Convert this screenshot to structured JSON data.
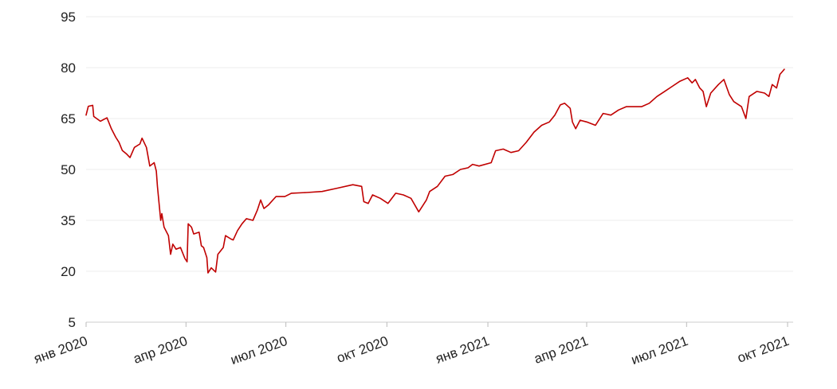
{
  "chart_data": {
    "type": "line",
    "title": "",
    "xlabel": "",
    "ylabel": "",
    "ylim": [
      5,
      95
    ],
    "xlim": [
      "2020-01-01",
      "2021-10-01"
    ],
    "yticks": [
      "95",
      "80",
      "65",
      "50",
      "35",
      "20",
      "5"
    ],
    "xticks": [
      {
        "date": "2020-01-01",
        "label": "янв 2020"
      },
      {
        "date": "2020-04-01",
        "label": "апр 2020"
      },
      {
        "date": "2020-07-01",
        "label": "июл 2020"
      },
      {
        "date": "2020-10-01",
        "label": "окт 2020"
      },
      {
        "date": "2021-01-01",
        "label": "янв 2021"
      },
      {
        "date": "2021-04-01",
        "label": "апр 2021"
      },
      {
        "date": "2021-07-01",
        "label": "июл 2021"
      },
      {
        "date": "2021-10-01",
        "label": "окт 2021"
      }
    ],
    "grid": true,
    "series": [
      {
        "color": "#c00000",
        "points": [
          [
            "2020-01-01",
            66.0
          ],
          [
            "2020-01-03",
            68.6
          ],
          [
            "2020-01-07",
            68.9
          ],
          [
            "2020-01-08",
            65.6
          ],
          [
            "2020-01-14",
            64.2
          ],
          [
            "2020-01-20",
            65.2
          ],
          [
            "2020-01-24",
            62.0
          ],
          [
            "2020-01-28",
            59.5
          ],
          [
            "2020-01-31",
            58.0
          ],
          [
            "2020-02-03",
            55.6
          ],
          [
            "2020-02-07",
            54.5
          ],
          [
            "2020-02-10",
            53.5
          ],
          [
            "2020-02-14",
            56.5
          ],
          [
            "2020-02-19",
            57.5
          ],
          [
            "2020-02-21",
            59.2
          ],
          [
            "2020-02-25",
            56.5
          ],
          [
            "2020-02-28",
            51.0
          ],
          [
            "2020-03-03",
            52.0
          ],
          [
            "2020-03-05",
            49.5
          ],
          [
            "2020-03-06",
            45.0
          ],
          [
            "2020-03-09",
            35.0
          ],
          [
            "2020-03-10",
            37.0
          ],
          [
            "2020-03-12",
            33.0
          ],
          [
            "2020-03-16",
            30.5
          ],
          [
            "2020-03-18",
            25.0
          ],
          [
            "2020-03-20",
            28.0
          ],
          [
            "2020-03-23",
            26.5
          ],
          [
            "2020-03-27",
            27.0
          ],
          [
            "2020-03-31",
            23.8
          ],
          [
            "2020-04-02",
            22.8
          ],
          [
            "2020-04-03",
            34.0
          ],
          [
            "2020-04-06",
            33.0
          ],
          [
            "2020-04-08",
            31.0
          ],
          [
            "2020-04-13",
            31.5
          ],
          [
            "2020-04-15",
            27.5
          ],
          [
            "2020-04-17",
            27.0
          ],
          [
            "2020-04-20",
            24.0
          ],
          [
            "2020-04-21",
            19.5
          ],
          [
            "2020-04-24",
            21.0
          ],
          [
            "2020-04-28",
            19.8
          ],
          [
            "2020-04-30",
            25.0
          ],
          [
            "2020-05-05",
            27.0
          ],
          [
            "2020-05-07",
            30.5
          ],
          [
            "2020-05-12",
            29.5
          ],
          [
            "2020-05-14",
            29.2
          ],
          [
            "2020-05-18",
            32.0
          ],
          [
            "2020-05-22",
            34.0
          ],
          [
            "2020-05-26",
            35.5
          ],
          [
            "2020-06-01",
            35.0
          ],
          [
            "2020-06-05",
            38.0
          ],
          [
            "2020-06-08",
            41.0
          ],
          [
            "2020-06-11",
            38.5
          ],
          [
            "2020-06-15",
            39.5
          ],
          [
            "2020-06-22",
            42.0
          ],
          [
            "2020-06-30",
            42.0
          ],
          [
            "2020-07-06",
            43.0
          ],
          [
            "2020-07-20",
            43.2
          ],
          [
            "2020-08-03",
            43.5
          ],
          [
            "2020-08-17",
            44.5
          ],
          [
            "2020-08-31",
            45.5
          ],
          [
            "2020-09-08",
            45.0
          ],
          [
            "2020-09-10",
            40.5
          ],
          [
            "2020-09-14",
            40.0
          ],
          [
            "2020-09-18",
            42.5
          ],
          [
            "2020-09-25",
            41.5
          ],
          [
            "2020-10-02",
            40.0
          ],
          [
            "2020-10-09",
            43.0
          ],
          [
            "2020-10-16",
            42.5
          ],
          [
            "2020-10-23",
            41.5
          ],
          [
            "2020-10-30",
            37.5
          ],
          [
            "2020-11-03",
            39.5
          ],
          [
            "2020-11-06",
            41.0
          ],
          [
            "2020-11-09",
            43.5
          ],
          [
            "2020-11-16",
            45.0
          ],
          [
            "2020-11-23",
            48.0
          ],
          [
            "2020-11-30",
            48.5
          ],
          [
            "2020-12-07",
            50.0
          ],
          [
            "2020-12-14",
            50.5
          ],
          [
            "2020-12-18",
            51.5
          ],
          [
            "2020-12-24",
            51.0
          ],
          [
            "2021-01-04",
            52.0
          ],
          [
            "2021-01-08",
            55.5
          ],
          [
            "2021-01-15",
            56.0
          ],
          [
            "2021-01-22",
            55.0
          ],
          [
            "2021-01-29",
            55.5
          ],
          [
            "2021-02-05",
            58.0
          ],
          [
            "2021-02-12",
            61.0
          ],
          [
            "2021-02-19",
            63.0
          ],
          [
            "2021-02-26",
            64.0
          ],
          [
            "2021-03-03",
            66.0
          ],
          [
            "2021-03-08",
            69.0
          ],
          [
            "2021-03-12",
            69.5
          ],
          [
            "2021-03-17",
            68.0
          ],
          [
            "2021-03-19",
            64.0
          ],
          [
            "2021-03-22",
            62.0
          ],
          [
            "2021-03-26",
            64.5
          ],
          [
            "2021-04-01",
            64.0
          ],
          [
            "2021-04-09",
            63.0
          ],
          [
            "2021-04-16",
            66.5
          ],
          [
            "2021-04-23",
            66.0
          ],
          [
            "2021-04-30",
            67.5
          ],
          [
            "2021-05-07",
            68.5
          ],
          [
            "2021-05-14",
            68.5
          ],
          [
            "2021-05-21",
            68.5
          ],
          [
            "2021-05-28",
            69.5
          ],
          [
            "2021-06-04",
            71.5
          ],
          [
            "2021-06-11",
            73.0
          ],
          [
            "2021-06-18",
            74.5
          ],
          [
            "2021-06-25",
            76.0
          ],
          [
            "2021-07-02",
            77.0
          ],
          [
            "2021-07-06",
            75.5
          ],
          [
            "2021-07-09",
            76.5
          ],
          [
            "2021-07-13",
            74.0
          ],
          [
            "2021-07-16",
            73.0
          ],
          [
            "2021-07-19",
            68.5
          ],
          [
            "2021-07-23",
            72.5
          ],
          [
            "2021-07-30",
            75.0
          ],
          [
            "2021-08-04",
            76.5
          ],
          [
            "2021-08-09",
            72.0
          ],
          [
            "2021-08-13",
            70.0
          ],
          [
            "2021-08-20",
            68.5
          ],
          [
            "2021-08-24",
            65.0
          ],
          [
            "2021-08-27",
            71.5
          ],
          [
            "2021-09-03",
            73.0
          ],
          [
            "2021-09-10",
            72.5
          ],
          [
            "2021-09-14",
            71.5
          ],
          [
            "2021-09-17",
            75.0
          ],
          [
            "2021-09-21",
            74.0
          ],
          [
            "2021-09-24",
            78.0
          ],
          [
            "2021-09-28",
            79.5
          ]
        ]
      }
    ]
  }
}
